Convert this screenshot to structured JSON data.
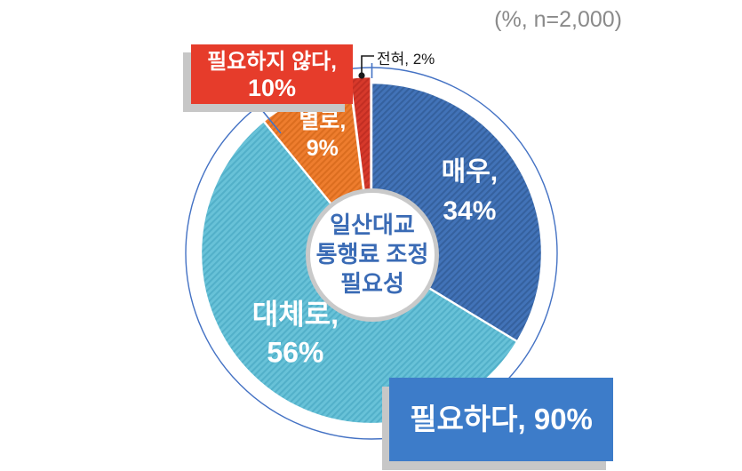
{
  "header": {
    "note": "(%, n=2,000)"
  },
  "center": {
    "line1": "일산대교",
    "line2": "통행료 조정",
    "line3": "필요성"
  },
  "callouts": {
    "not_needed": {
      "line1": "필요하지 않다,",
      "line2": "10%"
    },
    "needed": {
      "text": "필요하다, 90%"
    },
    "none": {
      "text": "전혀, 2%"
    }
  },
  "colors": {
    "outer_ring": "#4472C4",
    "leader_line": "#4472C4",
    "elbow_line": "#1a1a1a",
    "hole_ring_gray": "#c9c9c9",
    "shadow_gray": "#c7c7c7",
    "note_gray": "#8a8a8a",
    "center_text_blue": "#3A6BB5",
    "red_box_bg": "#E63C2B",
    "blue_box_bg": "#3D7CC9",
    "slice_border": "#ffffff"
  },
  "chart_data": {
    "type": "pie",
    "style": "donut",
    "title": "일산대교 통행료 조정 필요성",
    "note": "(%, n=2,000)",
    "n": "2,000",
    "unit": "%",
    "legend_position": "none",
    "hatch_pattern": true,
    "slices": [
      {
        "label": "매우",
        "value": 34,
        "color": "#4273B8",
        "hatch": "#35619E"
      },
      {
        "label": "대체로",
        "value": 56,
        "color": "#68C2D8",
        "hatch": "#52B0C9"
      },
      {
        "label": "별로",
        "value": 9,
        "color": "#EE7D2E",
        "hatch": "#DB6D1F"
      },
      {
        "label": "전혀",
        "value": 2,
        "color": "#D6392B",
        "hatch": "#C22E23"
      }
    ],
    "aggregates": [
      {
        "label": "필요하다",
        "value": 90
      },
      {
        "label": "필요하지 않다",
        "value": 10
      }
    ]
  }
}
